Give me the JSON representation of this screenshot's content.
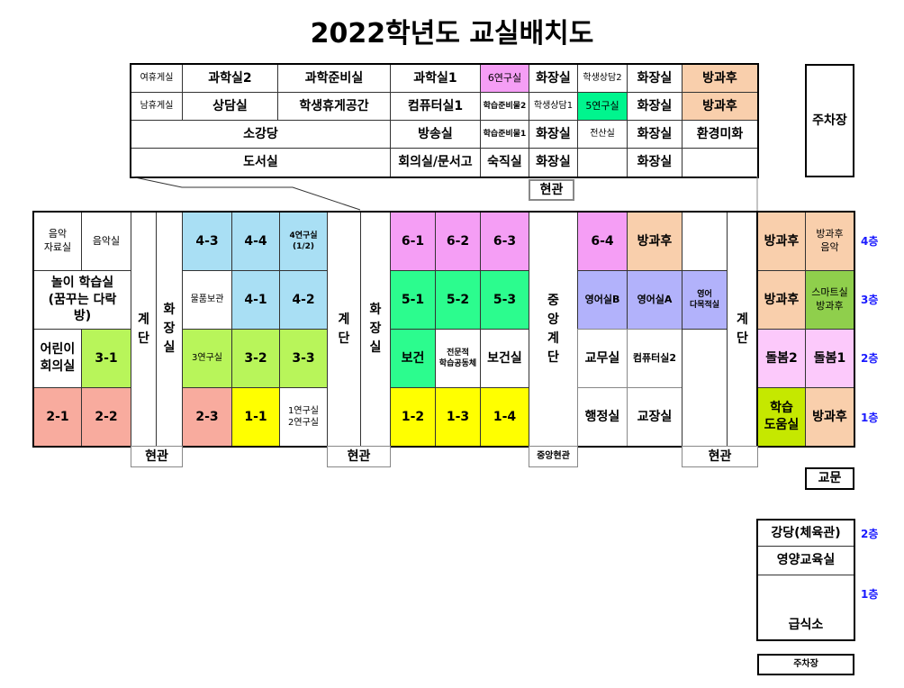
{
  "title": "2022학년도 교실배치도",
  "colors": {
    "sky": "#a9dff4",
    "pink": "#f59ef5",
    "green": "#2cfc8e",
    "yellow": "#ffff00",
    "salmon": "#f8ab9e",
    "lime": "#b8f55a",
    "peach": "#f9cfac",
    "lavender": "#b2b2fb",
    "lightpink": "#fcc9fb",
    "olive": "#c5e800",
    "smart": "#8fcf4c",
    "mint": "#00f58e"
  },
  "annex": {
    "rooms": [
      "여휴게실",
      "과학실2",
      "과학준비실",
      "과학실1",
      "6연구실",
      "화장실",
      "학생상담2",
      "화장실",
      "방과후",
      "남휴게실",
      "상담실",
      "학생휴게공간",
      "컴퓨터실1",
      "학습준비물2",
      "학생상담1",
      "5연구실",
      "화장실",
      "방과후",
      "소강당",
      "방송실",
      "학습준비물1",
      "화장실",
      "전산실",
      "화장실",
      "환경미화",
      "도서실",
      "회의실/문서고",
      "숙직실",
      "화장실",
      "화장실"
    ],
    "entrance": "현관"
  },
  "parking": "주차장",
  "main": {
    "rooms": [
      "음악\n자료실",
      "음악실",
      "놀이 학습실\n(꿈꾸는 다락\n방)",
      "어린이\n회의실",
      "3-1",
      "2-1",
      "2-2",
      "계\n단",
      "화\n장\n실",
      "4-3",
      "4-4",
      "4연구실\n(1/2)",
      "물품보관",
      "4-1",
      "4-2",
      "3연구실",
      "3-2",
      "3-3",
      "2-3",
      "1-1",
      "1연구실\n2연구실",
      "계\n단",
      "화\n장\n실",
      "6-1",
      "6-2",
      "6-3",
      "5-1",
      "5-2",
      "5-3",
      "보건",
      "전문적\n학습공동체",
      "보건실",
      "1-2",
      "1-3",
      "1-4",
      "중\n앙\n계\n단",
      "6-4",
      "방과후",
      "영어실B",
      "영어실A",
      "영어\n다목적실",
      "교무실",
      "컴퓨터실2",
      "행정실",
      "교장실",
      "계\n단",
      "방과후",
      "방과후\n음악",
      "방과후",
      "스마트실\n방과후",
      "돌봄2",
      "돌봄1",
      "학습\n도움실",
      "방과후"
    ],
    "entrances": [
      "현관",
      "현관",
      "중앙현관",
      "현관"
    ]
  },
  "floors": [
    "4층",
    "3층",
    "2층",
    "1층"
  ],
  "gate": "교문",
  "gym": {
    "rooms": [
      "강당(체육관)",
      "영양교육실",
      "급식소"
    ],
    "floors": [
      "2층",
      "1층"
    ],
    "parking": "주차장"
  }
}
